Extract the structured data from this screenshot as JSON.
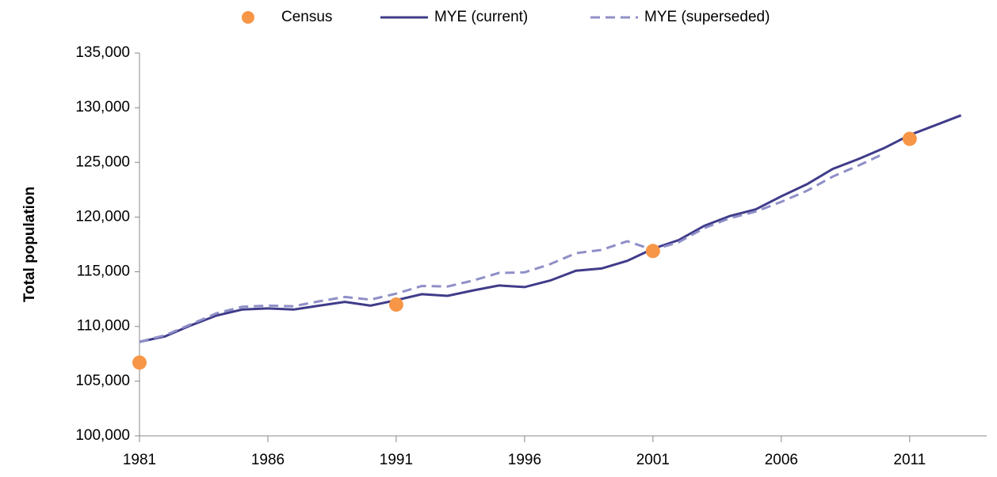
{
  "chart_data": {
    "type": "line",
    "y_label": "Total population",
    "x": [
      1981,
      1982,
      1983,
      1984,
      1985,
      1986,
      1987,
      1988,
      1989,
      1990,
      1991,
      1992,
      1993,
      1994,
      1995,
      1996,
      1997,
      1998,
      1999,
      2000,
      2001,
      2002,
      2003,
      2004,
      2005,
      2006,
      2007,
      2008,
      2009,
      2010,
      2011,
      2012,
      2013
    ],
    "xlim": [
      1981,
      2014
    ],
    "xticks": [
      1981,
      1986,
      1991,
      1996,
      2001,
      2006,
      2011
    ],
    "ylim": [
      100000,
      135000
    ],
    "yticks": [
      {
        "value": 100000,
        "label": "100,000"
      },
      {
        "value": 105000,
        "label": "105,000"
      },
      {
        "value": 110000,
        "label": "110,000"
      },
      {
        "value": 115000,
        "label": "115,000"
      },
      {
        "value": 120000,
        "label": "120,000"
      },
      {
        "value": 125000,
        "label": "125,000"
      },
      {
        "value": 130000,
        "label": "130,000"
      },
      {
        "value": 135000,
        "label": "135,000"
      }
    ],
    "series": [
      {
        "name": "Census",
        "color": "#f79646",
        "style": "point",
        "values": [
          106700,
          null,
          null,
          null,
          null,
          null,
          null,
          null,
          null,
          null,
          112000,
          null,
          null,
          null,
          null,
          null,
          null,
          null,
          null,
          null,
          116900,
          null,
          null,
          null,
          null,
          null,
          null,
          null,
          null,
          null,
          127150,
          null,
          null
        ]
      },
      {
        "name": "MYE (current)",
        "color": "#403c8a",
        "style": "solid",
        "values": [
          108600,
          109100,
          110100,
          111000,
          111550,
          111650,
          111550,
          111900,
          112250,
          111900,
          112400,
          112950,
          112800,
          113300,
          113750,
          113600,
          114200,
          115100,
          115300,
          116000,
          117100,
          117900,
          119200,
          120100,
          120700,
          121900,
          123000,
          124400,
          125300,
          126300,
          127500,
          128400,
          129300
        ]
      },
      {
        "name": "MYE (superseded)",
        "color": "#8f8fc8",
        "style": "dashed",
        "values": [
          108600,
          109200,
          110200,
          111200,
          111800,
          111900,
          111850,
          112300,
          112700,
          112450,
          113000,
          113700,
          113650,
          114200,
          114900,
          114950,
          115700,
          116700,
          117000,
          117800,
          117000,
          117700,
          119000,
          119900,
          120500,
          121400,
          122400,
          123700,
          124700,
          125800,
          null,
          null,
          null
        ]
      }
    ]
  }
}
